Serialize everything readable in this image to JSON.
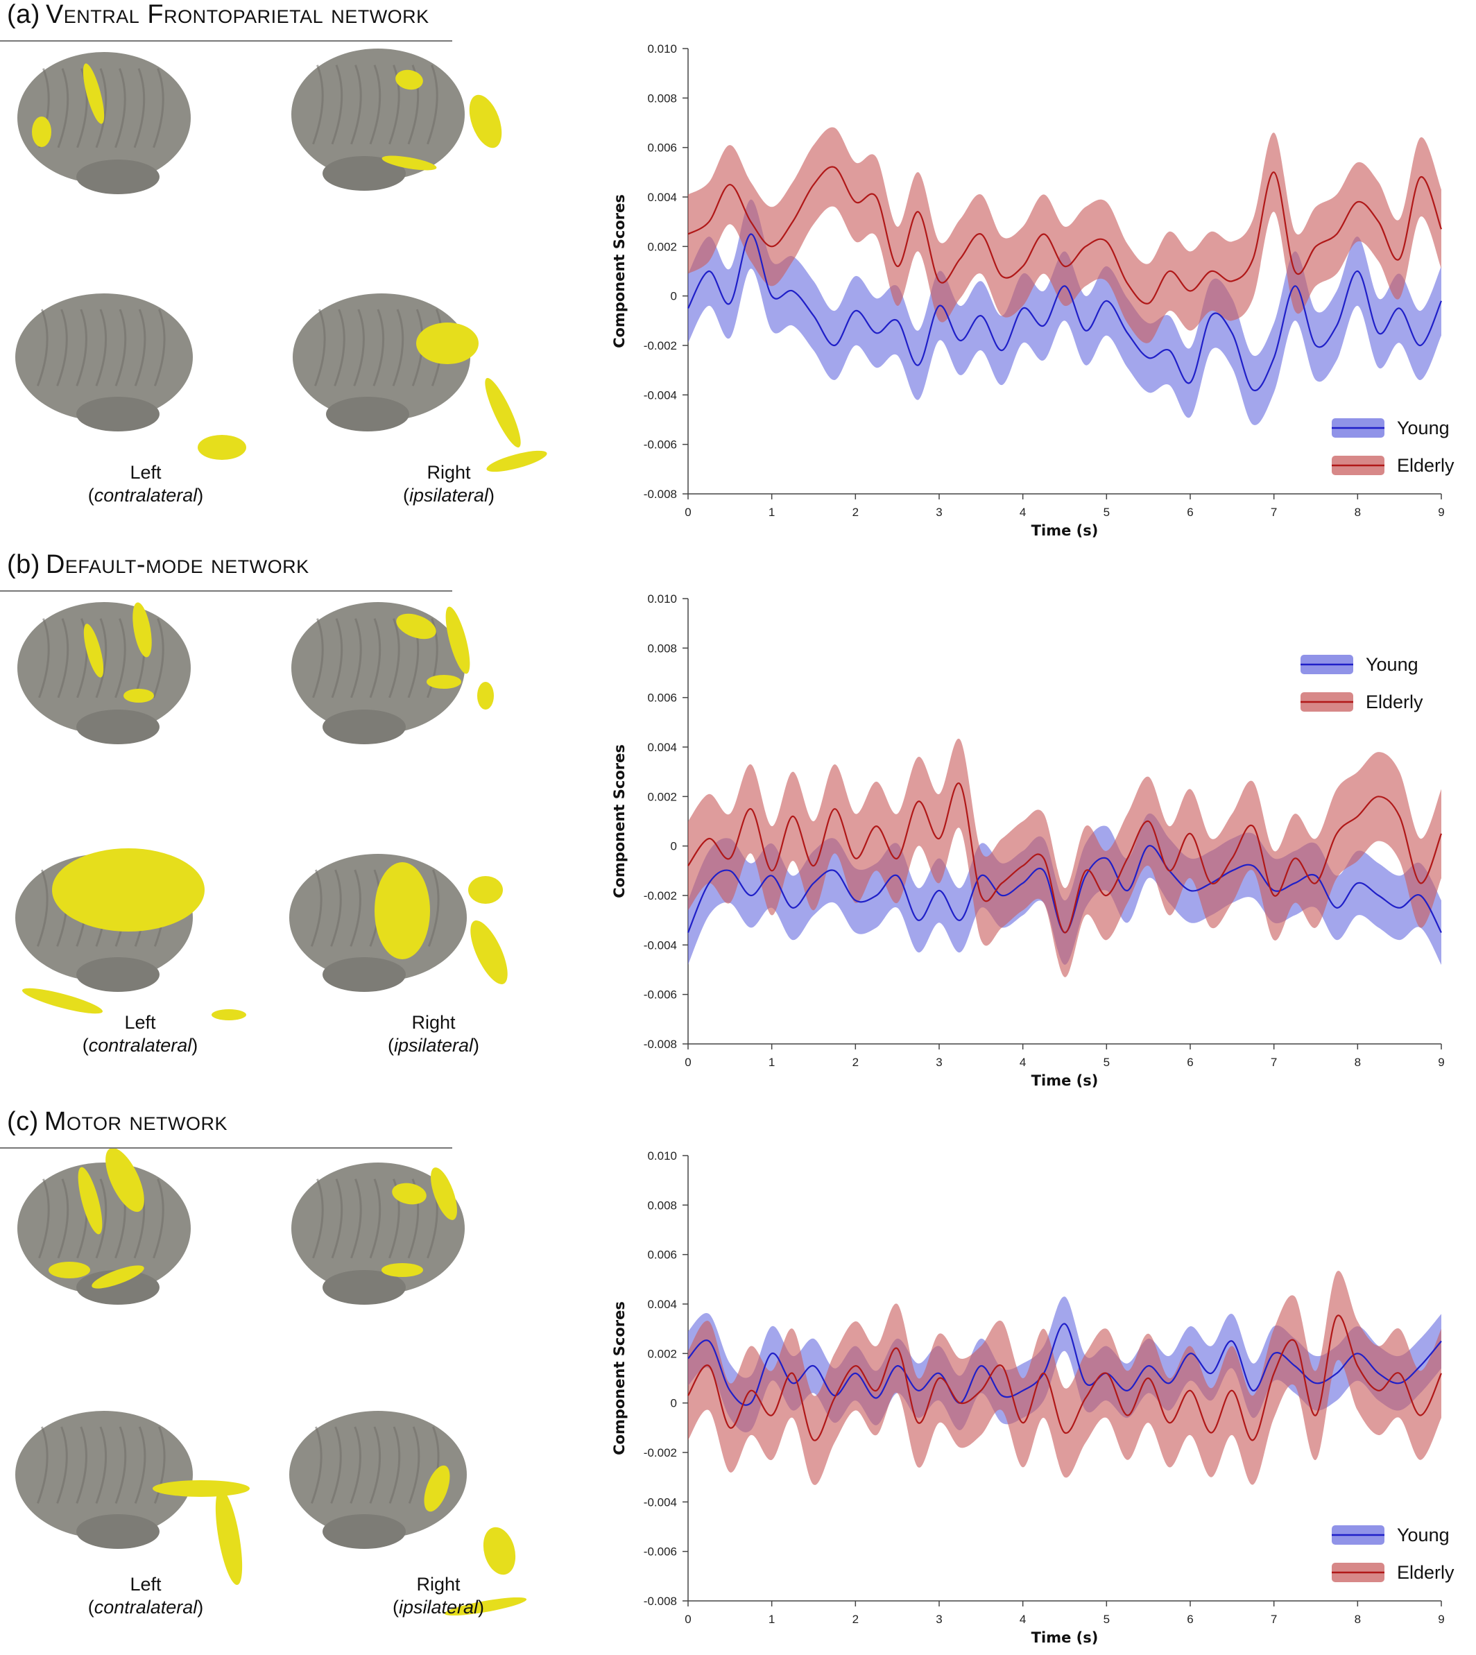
{
  "colors": {
    "young_line": "#1f1fc8",
    "young_band": "#6b6fe0",
    "elderly_line": "#b01818",
    "elderly_band": "#c96060",
    "brain_surface": "#8e8d86",
    "activation": "#e6de1c"
  },
  "panels": [
    {
      "label": "(a)",
      "network": "Ventral Frontoparietal network",
      "left_label": "Left",
      "left_sub": "contralateral",
      "right_label": "Right",
      "right_sub": "ipsilateral"
    },
    {
      "label": "(b)",
      "network": "Default-mode network",
      "left_label": "Left",
      "left_sub": "contralateral",
      "right_label": "Right",
      "right_sub": "ipsilateral"
    },
    {
      "label": "(c)",
      "network": "Motor network",
      "left_label": "Left",
      "left_sub": "contralateral",
      "right_label": "Right",
      "right_sub": "ipsilateral"
    }
  ],
  "chart_data": [
    {
      "type": "line",
      "xlabel": "Time (s)",
      "ylabel": "Component Scores",
      "xlim": [
        0,
        9
      ],
      "ylim": [
        -0.008,
        0.01
      ],
      "xticks": [
        "0",
        "1",
        "2",
        "3",
        "4",
        "5",
        "6",
        "7",
        "8",
        "9"
      ],
      "yticks": [
        "0.010",
        "0.008",
        "0.006",
        "0.004",
        "0.002",
        "0",
        "-0.002",
        "-0.004",
        "-0.006",
        "-0.008"
      ],
      "legend_position": "bottom-right",
      "x": [
        0,
        0.25,
        0.5,
        0.75,
        1,
        1.25,
        1.5,
        1.75,
        2,
        2.25,
        2.5,
        2.75,
        3,
        3.25,
        3.5,
        3.75,
        4,
        4.25,
        4.5,
        4.75,
        5,
        5.25,
        5.5,
        5.75,
        6,
        6.25,
        6.5,
        6.75,
        7,
        7.25,
        7.5,
        7.75,
        8,
        8.25,
        8.5,
        8.75,
        9
      ],
      "series": [
        {
          "name": "Young",
          "values": [
            -0.0005,
            0.001,
            -0.0003,
            0.0025,
            0.0,
            0.0002,
            -0.0008,
            -0.002,
            -0.0006,
            -0.0015,
            -0.001,
            -0.0028,
            -0.0004,
            -0.0018,
            -0.0008,
            -0.0022,
            -0.0005,
            -0.0012,
            0.0004,
            -0.0014,
            -0.0002,
            -0.0015,
            -0.0025,
            -0.0022,
            -0.0035,
            -0.0008,
            -0.0015,
            -0.0038,
            -0.0025,
            0.0004,
            -0.002,
            -0.0012,
            0.001,
            -0.0015,
            -0.0005,
            -0.002,
            -0.0002
          ],
          "band": 0.0014
        },
        {
          "name": "Elderly",
          "values": [
            0.0025,
            0.003,
            0.0045,
            0.003,
            0.002,
            0.003,
            0.0045,
            0.0052,
            0.0038,
            0.004,
            0.0012,
            0.0034,
            0.0006,
            0.0015,
            0.0025,
            0.0008,
            0.0012,
            0.0025,
            0.0012,
            0.002,
            0.0022,
            0.0005,
            -0.0003,
            0.001,
            0.0002,
            0.001,
            0.0006,
            0.0015,
            0.005,
            0.001,
            0.002,
            0.0025,
            0.0038,
            0.003,
            0.0015,
            0.0048,
            0.0027
          ],
          "band": 0.0016
        }
      ]
    },
    {
      "type": "line",
      "xlabel": "Time (s)",
      "ylabel": "Component Scores",
      "xlim": [
        0,
        9
      ],
      "ylim": [
        -0.008,
        0.01
      ],
      "xticks": [
        "0",
        "1",
        "2",
        "3",
        "4",
        "5",
        "6",
        "7",
        "8",
        "9"
      ],
      "yticks": [
        "0.010",
        "0.008",
        "0.006",
        "0.004",
        "0.002",
        "0",
        "-0.002",
        "-0.004",
        "-0.006",
        "-0.008"
      ],
      "legend_position": "top-right",
      "x": [
        0,
        0.25,
        0.5,
        0.75,
        1,
        1.25,
        1.5,
        1.75,
        2,
        2.25,
        2.5,
        2.75,
        3,
        3.25,
        3.5,
        3.75,
        4,
        4.25,
        4.5,
        4.75,
        5,
        5.25,
        5.5,
        5.75,
        6,
        6.25,
        6.5,
        6.75,
        7,
        7.25,
        7.5,
        7.75,
        8,
        8.25,
        8.5,
        8.75,
        9
      ],
      "series": [
        {
          "name": "Young",
          "values": [
            -0.0035,
            -0.0015,
            -0.001,
            -0.002,
            -0.0012,
            -0.0025,
            -0.0015,
            -0.001,
            -0.0022,
            -0.002,
            -0.0012,
            -0.003,
            -0.0018,
            -0.003,
            -0.0012,
            -0.002,
            -0.0015,
            -0.001,
            -0.0035,
            -0.0012,
            -0.0005,
            -0.0018,
            0.0,
            -0.001,
            -0.0018,
            -0.0015,
            -0.001,
            -0.0008,
            -0.0018,
            -0.0015,
            -0.0012,
            -0.0025,
            -0.0015,
            -0.002,
            -0.0025,
            -0.002,
            -0.0035
          ],
          "band": 0.0013
        },
        {
          "name": "Elderly",
          "values": [
            -0.0008,
            0.0003,
            -0.0005,
            0.0015,
            -0.001,
            0.0012,
            -0.0008,
            0.0015,
            -0.0005,
            0.0008,
            -0.0005,
            0.0018,
            0.0003,
            0.0025,
            -0.002,
            -0.0015,
            -0.0008,
            -0.0005,
            -0.0035,
            -0.001,
            -0.002,
            -0.0005,
            0.001,
            -0.001,
            0.0005,
            -0.0015,
            -0.0005,
            0.0008,
            -0.002,
            -0.0005,
            -0.0015,
            0.0005,
            0.0012,
            0.002,
            0.0012,
            -0.0015,
            0.0005
          ],
          "band": 0.0018
        }
      ]
    },
    {
      "type": "line",
      "xlabel": "Time (s)",
      "ylabel": "Component Scores",
      "xlim": [
        0,
        9
      ],
      "ylim": [
        -0.008,
        0.01
      ],
      "xticks": [
        "0",
        "1",
        "2",
        "3",
        "4",
        "5",
        "6",
        "7",
        "8",
        "9"
      ],
      "yticks": [
        "0.010",
        "0.008",
        "0.006",
        "0.004",
        "0.002",
        "0",
        "-0.002",
        "-0.004",
        "-0.006",
        "-0.008"
      ],
      "legend_position": "bottom-right",
      "x": [
        0,
        0.25,
        0.5,
        0.75,
        1,
        1.25,
        1.5,
        1.75,
        2,
        2.25,
        2.5,
        2.75,
        3,
        3.25,
        3.5,
        3.75,
        4,
        4.25,
        4.5,
        4.75,
        5,
        5.25,
        5.5,
        5.75,
        6,
        6.25,
        6.5,
        6.75,
        7,
        7.25,
        7.5,
        7.75,
        8,
        8.25,
        8.5,
        8.75,
        9
      ],
      "series": [
        {
          "name": "Young",
          "values": [
            0.0018,
            0.0025,
            0.0005,
            0.0,
            0.002,
            0.0008,
            0.0015,
            0.0003,
            0.0012,
            0.0002,
            0.0015,
            0.0005,
            0.0012,
            0.0,
            0.0015,
            0.0003,
            0.0005,
            0.0012,
            0.0032,
            0.0008,
            0.0012,
            0.0005,
            0.0015,
            0.0008,
            0.002,
            0.0012,
            0.0025,
            0.0005,
            0.002,
            0.0015,
            0.0008,
            0.0012,
            0.002,
            0.0012,
            0.0008,
            0.0015,
            0.0025
          ],
          "band": 0.0011
        },
        {
          "name": "Elderly",
          "values": [
            0.0003,
            0.0015,
            -0.001,
            0.0005,
            -0.0005,
            0.0012,
            -0.0015,
            0.0002,
            0.0015,
            0.0005,
            0.0022,
            -0.0008,
            0.001,
            0.0,
            0.0005,
            0.0015,
            -0.0008,
            0.0012,
            -0.0012,
            0.0002,
            0.0012,
            -0.0005,
            0.001,
            -0.0008,
            0.0005,
            -0.0012,
            0.0005,
            -0.0015,
            0.0012,
            0.0025,
            -0.0005,
            0.0035,
            0.0015,
            0.0005,
            0.0012,
            -0.0005,
            0.0012
          ],
          "band": 0.0018
        }
      ]
    }
  ]
}
